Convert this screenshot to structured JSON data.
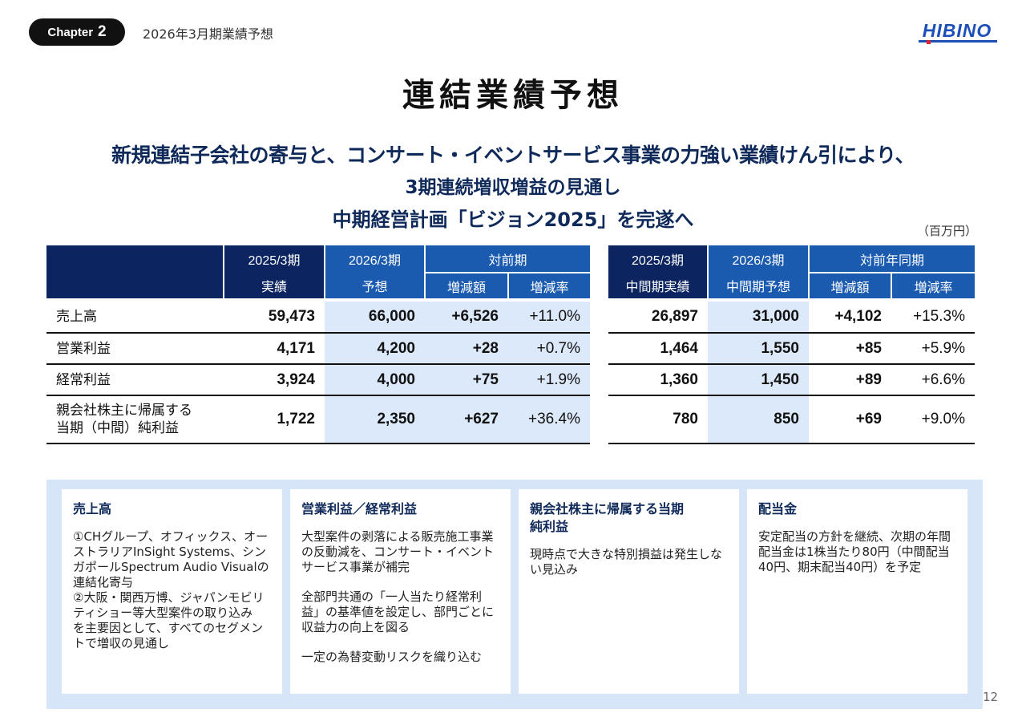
{
  "header": {
    "chapter_label": "Chapter",
    "chapter_number": "2",
    "section_title": "2026年3月期業績予想",
    "logo_text": "HIBINO"
  },
  "title": "連結業績予想",
  "headline": {
    "line1": "新規連結子会社の寄与と、コンサート・イベントサービス事業の力強い業績けん引により、",
    "line2": "3期連続増収増益の見通し",
    "line3": "中期経営計画「ビジョン2025」を完遂へ"
  },
  "unit": "（百万円）",
  "table_full": {
    "col1_top": "2025/3期",
    "col1_bottom": "実績",
    "col2_top": "2026/3期",
    "col2_bottom": "予想",
    "col3_top": "対前期",
    "col3a": "増減額",
    "col3b": "増減率"
  },
  "table_half": {
    "col1_top": "2025/3期",
    "col1_bottom": "中間期実績",
    "col2_top": "2026/3期",
    "col2_bottom": "中間期予想",
    "col3_top": "対前年同期",
    "col3a": "増減額",
    "col3b": "増減率"
  },
  "rows": [
    {
      "label1": "売上高",
      "label2": "",
      "full": [
        "59,473",
        "66,000",
        "+6,526",
        "+11.0%"
      ],
      "half": [
        "26,897",
        "31,000",
        "+4,102",
        "+15.3%"
      ]
    },
    {
      "label1": "営業利益",
      "label2": "",
      "full": [
        "4,171",
        "4,200",
        "+28",
        "+0.7%"
      ],
      "half": [
        "1,464",
        "1,550",
        "+85",
        "+5.9%"
      ]
    },
    {
      "label1": "経常利益",
      "label2": "",
      "full": [
        "3,924",
        "4,000",
        "+75",
        "+1.9%"
      ],
      "half": [
        "1,360",
        "1,450",
        "+89",
        "+6.6%"
      ]
    },
    {
      "label1": "親会社株主に帰属する",
      "label2": "当期（中間）純利益",
      "full": [
        "1,722",
        "2,350",
        "+627",
        "+36.4%"
      ],
      "half": [
        "780",
        "850",
        "+69",
        "+9.0%"
      ]
    }
  ],
  "cards": [
    {
      "title": "売上高",
      "paragraphs": [
        "①CHグループ、オフィックス、オーストラリアInSight Systems、シンガポールSpectrum Audio Visualの連結化寄与",
        "②大阪・関西万博、ジャパンモビリティショー等大型案件の取り込み",
        "を主要因として、すべてのセグメントで増収の見通し"
      ]
    },
    {
      "title": "営業利益／経常利益",
      "paragraphs": [
        "大型案件の剥落による販売施工事業の反動減を、コンサート・イベントサービス事業が補完",
        "全部門共通の「一人当たり経常利益」の基準値を設定し、部門ごとに収益力の向上を図る",
        "一定の為替変動リスクを織り込む"
      ]
    },
    {
      "title": "親会社株主に帰属する当期純利益",
      "paragraphs": [
        "現時点で大きな特別損益は発生しない見込み"
      ]
    },
    {
      "title": "配当金",
      "paragraphs": [
        "安定配当の方針を継続、次期の年間配当金は1株当たり80円（中間配当40円、期末配当40円）を予定"
      ]
    }
  ],
  "page_number": "12",
  "colors": {
    "navy": "#0c2560",
    "blue": "#1a5bb0",
    "shade": "#dce9fa",
    "panel": "#d6e5f8",
    "logo_blue": "#1d4fb8",
    "logo_red": "#e0202a"
  }
}
